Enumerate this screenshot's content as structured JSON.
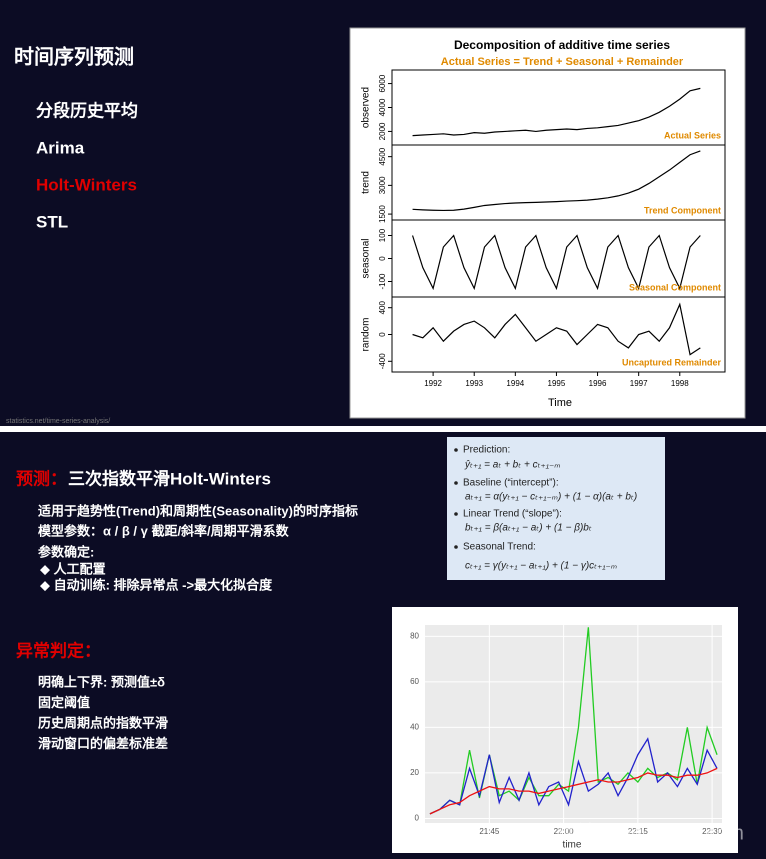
{
  "slide1": {
    "title": "时间序列预测",
    "items": [
      "分段历史平均",
      "Arima",
      "Holt-Winters",
      "STL"
    ],
    "active_item": 2,
    "active_color": "#e00000",
    "source": "statistics.net/time-series-analysis/",
    "chart_data": {
      "type": "decomposition",
      "title": "Decomposition of additive time series",
      "subtitle": "Actual Series = Trend + Seasonal + Remainder",
      "x_label": "Time",
      "xlim": [
        1991,
        1999.1
      ],
      "xticks": [
        1992,
        1993,
        1994,
        1995,
        1996,
        1997,
        1998
      ],
      "line_color": "#000000",
      "annotation_color": "#e08a00",
      "x": [
        1991.5,
        1991.75,
        1992,
        1992.25,
        1992.5,
        1992.75,
        1993,
        1993.25,
        1993.5,
        1993.75,
        1994,
        1994.25,
        1994.5,
        1994.75,
        1995,
        1995.25,
        1995.5,
        1995.75,
        1996,
        1996.25,
        1996.5,
        1996.75,
        1997,
        1997.25,
        1997.5,
        1997.75,
        1998,
        1998.25,
        1998.5
      ],
      "panels": [
        {
          "y_label": "observed",
          "annotation": "Actual Series",
          "ylim": [
            1200,
            6800
          ],
          "yticks": [
            2000,
            4000,
            6000
          ],
          "values": [
            1650,
            1700,
            1750,
            1800,
            1700,
            1750,
            1900,
            1850,
            1950,
            2000,
            2050,
            2100,
            2000,
            2100,
            2150,
            2200,
            2150,
            2250,
            2300,
            2400,
            2500,
            2700,
            2900,
            3200,
            3600,
            4100,
            4700,
            5400,
            5600
          ]
        },
        {
          "y_label": "trend",
          "annotation": "Trend Component",
          "ylim": [
            1400,
            4900
          ],
          "yticks": [
            1500,
            3000,
            4500
          ],
          "values": [
            1750,
            1720,
            1700,
            1690,
            1700,
            1760,
            1850,
            1950,
            2000,
            2050,
            2080,
            2100,
            2110,
            2130,
            2150,
            2180,
            2200,
            2230,
            2280,
            2350,
            2450,
            2600,
            2800,
            3100,
            3450,
            3800,
            4200,
            4600,
            4800
          ]
        },
        {
          "y_label": "seasonal",
          "annotation": "Seasonal Component",
          "ylim": [
            -150,
            150
          ],
          "yticks": [
            -100,
            0,
            100
          ],
          "values": [
            100,
            -40,
            -130,
            50,
            100,
            -40,
            -130,
            50,
            100,
            -40,
            -130,
            50,
            100,
            -40,
            -130,
            50,
            100,
            -40,
            -130,
            50,
            100,
            -40,
            -130,
            50,
            100,
            -40,
            -130,
            50,
            100
          ]
        },
        {
          "y_label": "random",
          "annotation": "Uncaptured Remainder",
          "ylim": [
            -500,
            500
          ],
          "yticks": [
            -400,
            0,
            400
          ],
          "values": [
            0,
            -50,
            100,
            -100,
            50,
            150,
            200,
            100,
            -50,
            150,
            300,
            100,
            -100,
            0,
            100,
            50,
            -150,
            0,
            150,
            100,
            -100,
            -200,
            0,
            50,
            -100,
            100,
            450,
            -300,
            -200
          ]
        }
      ]
    }
  },
  "slide2": {
    "heading": {
      "label": "预测：",
      "text": "三次指数平滑Holt-Winters"
    },
    "lines": [
      "适用于趋势性(Trend)和周期性(Seasonality)的时序指标",
      "模型参数：α / β / γ    截距/斜率/周期平滑系数",
      "参数确定:",
      "◆ 人工配置",
      "◆ 自动训练: 排除异常点 ->最大化拟合度"
    ],
    "anomaly_heading": "异常判定：",
    "anomaly_items": [
      "明确上下界: 预测值±δ",
      "固定阈值",
      "历史周期点的指数平滑",
      "滑动窗口的偏差标准差"
    ],
    "formulas": [
      {
        "name": "Prediction:",
        "formula": "ŷₜ₊₁ = aₜ + bₜ + cₜ₊₁₋ₘ"
      },
      {
        "name": "Baseline (“intercept”):",
        "formula": "aₜ₊₁ = α(yₜ₊₁ − cₜ₊₁₋ₘ) + (1 − α)(aₜ + bₜ)"
      },
      {
        "name": "Linear Trend (“slope”):",
        "formula": "bₜ₊₁ = β(aₜ₊₁ − aₜ) + (1 − β)bₜ"
      },
      {
        "name": "Seasonal Trend:",
        "formula": "cₜ₊₁ = γ(yₜ₊₁ − aₜ₊₁) + (1 − γ)cₜ₊₁₋ₘ"
      }
    ],
    "chart_data": {
      "type": "line",
      "x_label": "time",
      "xlim": [
        "21:32",
        "22:32"
      ],
      "xticks": [
        "21:45",
        "22:00",
        "22:15",
        "22:30"
      ],
      "ylim": [
        -2,
        85
      ],
      "yticks": [
        0,
        20,
        40,
        60,
        80
      ],
      "grid": true,
      "x": [
        "21:33",
        "21:35",
        "21:37",
        "21:39",
        "21:41",
        "21:43",
        "21:45",
        "21:47",
        "21:49",
        "21:51",
        "21:53",
        "21:55",
        "21:57",
        "21:59",
        "22:01",
        "22:03",
        "22:05",
        "22:07",
        "22:09",
        "22:11",
        "22:13",
        "22:15",
        "22:17",
        "22:19",
        "22:21",
        "22:23",
        "22:25",
        "22:27",
        "22:29",
        "22:31"
      ],
      "series": [
        {
          "color": "#22cc22",
          "values": [
            2,
            4,
            8,
            6,
            30,
            9,
            28,
            10,
            12,
            8,
            18,
            10,
            10,
            15,
            12,
            40,
            84,
            16,
            18,
            15,
            20,
            16,
            22,
            18,
            20,
            17,
            40,
            15,
            40,
            28
          ]
        },
        {
          "color": "#2222cc",
          "values": [
            2,
            4,
            8,
            6,
            22,
            10,
            28,
            7,
            18,
            8,
            20,
            6,
            14,
            16,
            6,
            25,
            12,
            15,
            20,
            10,
            18,
            28,
            35,
            16,
            20,
            14,
            22,
            15,
            30,
            22
          ]
        },
        {
          "color": "#ee1111",
          "values": [
            2,
            4,
            6,
            7,
            10,
            12,
            14,
            13,
            13,
            12,
            12,
            11,
            12,
            13,
            14,
            15,
            16,
            17,
            16,
            16,
            17,
            18,
            20,
            19,
            19,
            18,
            19,
            19,
            20,
            22
          ]
        }
      ]
    }
  },
  "watermark": "云栖社区 yq.aliyun.com"
}
